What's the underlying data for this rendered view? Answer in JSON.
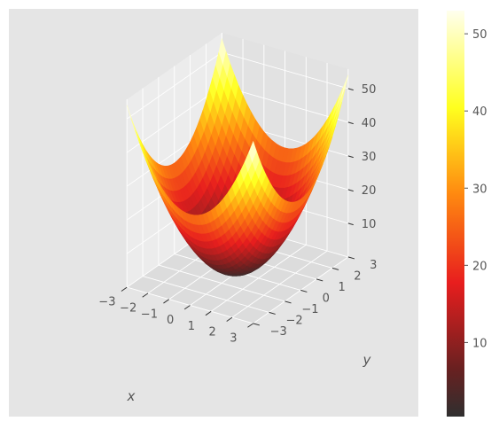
{
  "chart_data": {
    "type": "surface3d",
    "title": "",
    "function": "z = 3*x^2 + 3*y^2",
    "colormap": "hot",
    "xlabel": "x",
    "ylabel": "y",
    "zlabel": "",
    "xlim": [
      -3,
      3
    ],
    "ylim": [
      -3,
      3
    ],
    "zlim": [
      0,
      54
    ],
    "x_ticks": [
      "−3",
      "−2",
      "−1",
      "0",
      "1",
      "2",
      "3"
    ],
    "y_ticks": [
      "−3",
      "−2",
      "−1",
      "0",
      "1",
      "2",
      "3"
    ],
    "z_ticks": [
      "10",
      "20",
      "30",
      "40",
      "50"
    ],
    "colorbar": {
      "range": [
        0.4,
        53
      ],
      "ticks": [
        "10",
        "20",
        "30",
        "40",
        "50"
      ]
    },
    "grid": true,
    "pane_color": "#e6e6e6",
    "grid_color": "#ffffff"
  }
}
